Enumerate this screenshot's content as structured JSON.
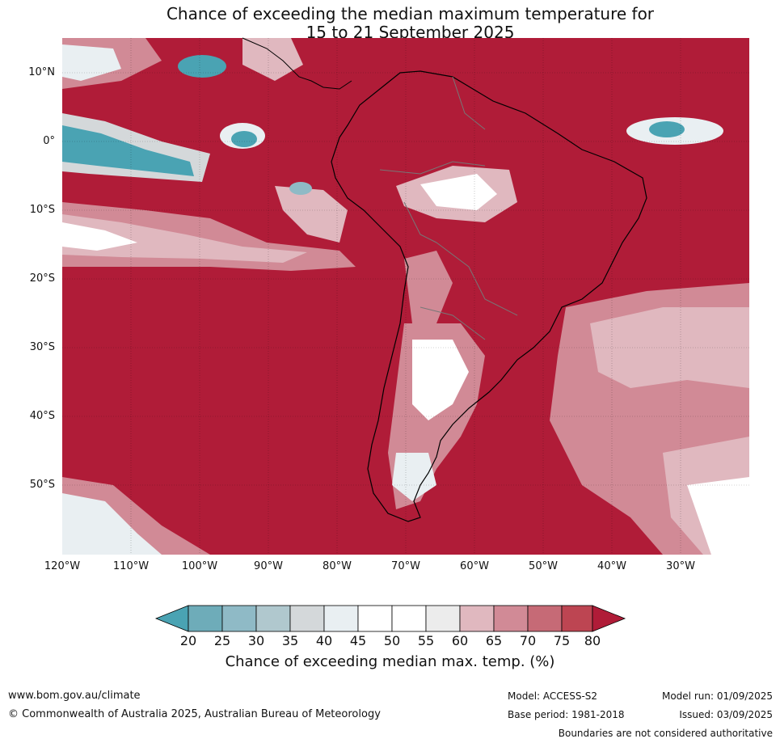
{
  "title": {
    "line1": "Chance of exceeding the median maximum temperature for",
    "line2": "15 to 21 September 2025"
  },
  "map": {
    "lat_labels": [
      "10°N",
      "0°",
      "10°S",
      "20°S",
      "30°S",
      "40°S",
      "50°S"
    ],
    "lon_labels": [
      "120°W",
      "110°W",
      "100°W",
      "90°W",
      "80°W",
      "70°W",
      "60°W",
      "50°W",
      "40°W",
      "30°W"
    ],
    "colors": {
      "dominant": "#b01c38",
      "c20": "#4aa3b3",
      "c25": "#6eacb9",
      "c30": "#8fbac6",
      "c35": "#b0c8ce",
      "c40": "#d4d8da",
      "c45": "#e9eff2",
      "c50": "#ffffff",
      "c55": "#ffffff",
      "c60": "#ececec",
      "c65": "#e0b8bf",
      "c70": "#d18a96",
      "c75": "#c66a76",
      "c80": "#bd4552"
    }
  },
  "colorbar": {
    "ticks": [
      "20",
      "25",
      "30",
      "35",
      "40",
      "45",
      "50",
      "55",
      "60",
      "65",
      "70",
      "75",
      "80"
    ],
    "label": "Chance of exceeding median max. temp. (%)"
  },
  "footer": {
    "website": "www.bom.gov.au/climate",
    "copyright": "© Commonwealth of Australia 2025, Australian Bureau of Meteorology",
    "model": "Model: ACCESS-S2",
    "base_period": "Base period: 1981-2018",
    "model_run": "Model run: 01/09/2025",
    "issued": "Issued: 03/09/2025",
    "disclaimer": "Boundaries are not considered authoritative"
  }
}
